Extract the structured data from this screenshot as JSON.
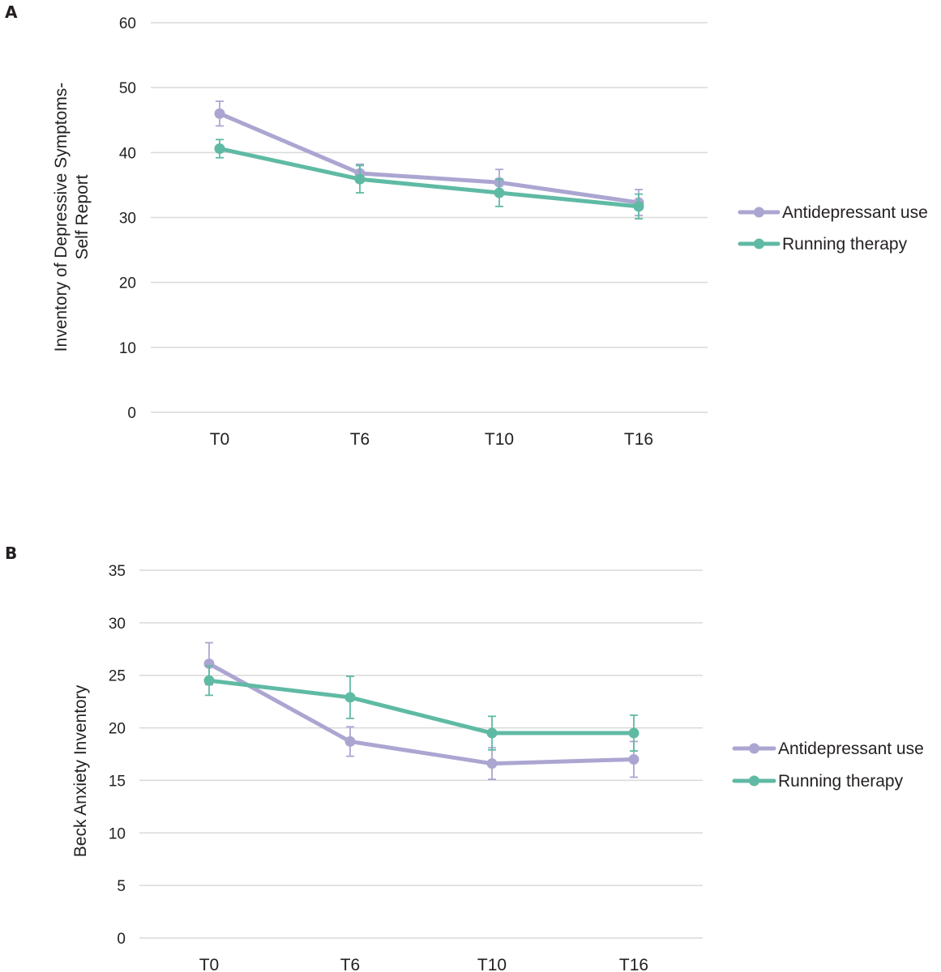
{
  "chart_data": [
    {
      "type": "line",
      "panel": "A",
      "categories": [
        "T0",
        "T6",
        "T10",
        "T16"
      ],
      "ylabel_lines": [
        "Inventory of Depressive Symptoms-",
        "Self Report"
      ],
      "ylim": [
        0,
        60
      ],
      "yticks": [
        0,
        10,
        20,
        30,
        40,
        50,
        60
      ],
      "grid": true,
      "legend_position": "right",
      "series": [
        {
          "name": "Antidepressant use",
          "color": "#aba6d1",
          "values": [
            46.0,
            36.8,
            35.4,
            32.3
          ],
          "error": [
            1.9,
            1.4,
            2.0,
            2.0
          ]
        },
        {
          "name": "Running therapy",
          "color": "#5fbaa4",
          "values": [
            40.6,
            35.9,
            33.8,
            31.7
          ],
          "error": [
            1.4,
            2.1,
            2.1,
            1.9
          ]
        }
      ]
    },
    {
      "type": "line",
      "panel": "B",
      "categories": [
        "T0",
        "T6",
        "T10",
        "T16"
      ],
      "ylabel_lines": [
        "Beck Anxiety Inventory"
      ],
      "ylim": [
        0,
        35
      ],
      "yticks": [
        0,
        5,
        10,
        15,
        20,
        25,
        30,
        35
      ],
      "grid": true,
      "legend_position": "right",
      "series": [
        {
          "name": "Antidepressant use",
          "color": "#aba6d1",
          "values": [
            26.1,
            18.7,
            16.6,
            17.0
          ],
          "error": [
            2.0,
            1.4,
            1.5,
            1.7
          ]
        },
        {
          "name": "Running therapy",
          "color": "#5fbaa4",
          "values": [
            24.5,
            22.9,
            19.5,
            19.5
          ],
          "error": [
            1.4,
            2.0,
            1.6,
            1.7
          ]
        }
      ]
    }
  ]
}
